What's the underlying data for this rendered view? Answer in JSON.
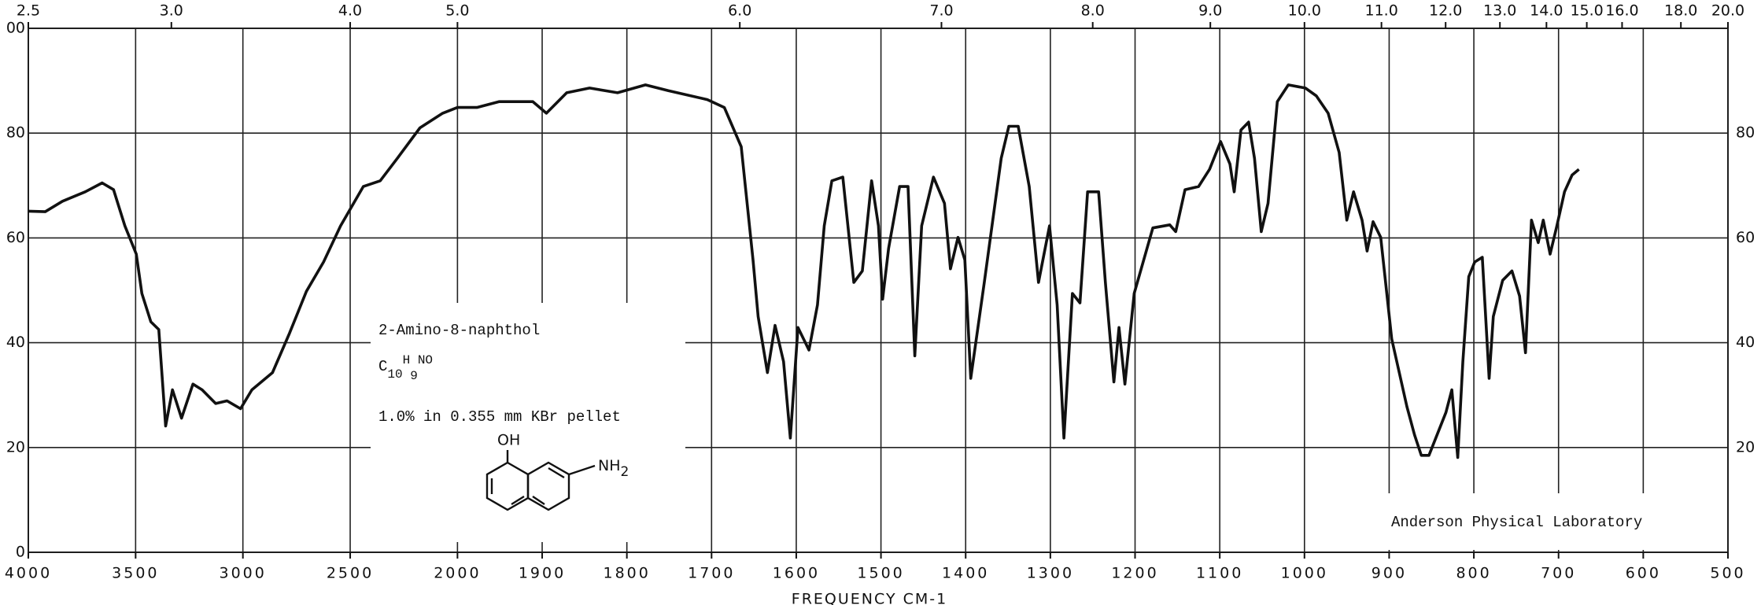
{
  "chart_data": {
    "type": "line",
    "x_label": "FREQUENCY  CM-1",
    "color": "#111111",
    "grid": true,
    "xlim": [
      4000,
      500
    ],
    "xticks": [
      4000,
      3500,
      3000,
      2500,
      2000,
      1900,
      1800,
      1700,
      1600,
      1500,
      1400,
      1300,
      1200,
      1100,
      1000,
      900,
      800,
      700,
      600,
      500
    ],
    "x2ticks": [
      2.5,
      {
        "value": 3,
        "label": "3.0"
      },
      {
        "value": 4,
        "label": "4.0"
      },
      {
        "value": 5,
        "label": "5.0"
      },
      {
        "value": 6,
        "label": "6.0"
      },
      {
        "value": 7,
        "label": "7.0"
      },
      {
        "value": 8,
        "label": "8.0"
      },
      {
        "value": 9,
        "label": "9.0"
      },
      {
        "value": 10,
        "label": "10.0"
      },
      {
        "value": 11,
        "label": "11.0"
      },
      {
        "value": 12,
        "label": "12.0"
      },
      {
        "value": 13,
        "label": "13.0"
      },
      {
        "value": 14,
        "label": "14.0"
      },
      {
        "value": 15,
        "label": "15.0"
      },
      {
        "value": 16,
        "label": "16.0"
      },
      {
        "value": 18,
        "label": "18.0"
      },
      {
        "value": 20,
        "label": "20.0"
      }
    ],
    "ylim": [
      0,
      100
    ],
    "yticks": [
      0,
      20,
      40,
      60,
      80,
      {
        "value": 100,
        "label": "00"
      }
    ],
    "x": [
      4000,
      3921,
      3841,
      3735,
      3656,
      3603,
      3550,
      3497,
      3471,
      3429,
      3392,
      3360,
      3328,
      3286,
      3233,
      3190,
      3127,
      3074,
      3011,
      2958,
      2862,
      2783,
      2704,
      2624,
      2545,
      2439,
      2360,
      2280,
      2175,
      2069,
      2000,
      1977,
      1951,
      1911,
      1895,
      1871,
      1844,
      1811,
      1778,
      1751,
      1705,
      1685,
      1665,
      1651,
      1645,
      1634,
      1625,
      1615,
      1607,
      1598,
      1585,
      1575,
      1567,
      1558,
      1545,
      1532,
      1522,
      1511,
      1503,
      1498,
      1491,
      1478,
      1468,
      1460,
      1452,
      1438,
      1425,
      1418,
      1409,
      1401,
      1394,
      1378,
      1358,
      1349,
      1338,
      1325,
      1314,
      1301,
      1292,
      1284,
      1274,
      1265,
      1256,
      1243,
      1235,
      1225,
      1219,
      1212,
      1201,
      1179,
      1159,
      1152,
      1141,
      1125,
      1112,
      1099,
      1088,
      1083,
      1075,
      1066,
      1059,
      1051,
      1043,
      1032,
      1019,
      999,
      986,
      972,
      959,
      950,
      942,
      932,
      926,
      919,
      910,
      897,
      879,
      870,
      862,
      853,
      833,
      826,
      819,
      813,
      806,
      799,
      790,
      782,
      777,
      766,
      755,
      746,
      739,
      732,
      724,
      718,
      710,
      702,
      693,
      684,
      676
    ],
    "values": [
      65.1,
      65,
      67,
      68.8,
      70.5,
      69.2,
      62.3,
      56.9,
      49.4,
      44,
      42.5,
      24.1,
      31,
      25.6,
      32.1,
      31,
      28.4,
      28.9,
      27.4,
      31,
      34.3,
      41.8,
      49.8,
      55.4,
      62.3,
      69.8,
      70.9,
      75.2,
      81,
      83.8,
      84.9,
      84.9,
      86,
      86,
      83.8,
      87.7,
      88.6,
      87.7,
      89.2,
      88.1,
      86.4,
      84.9,
      77.4,
      55.8,
      45,
      34.3,
      43.3,
      36.4,
      21.8,
      42.9,
      38.6,
      47.2,
      62.3,
      70.9,
      71.6,
      51.5,
      53.7,
      70.9,
      62.3,
      48.3,
      58,
      69.8,
      69.8,
      37.5,
      62.3,
      71.6,
      66.6,
      54.1,
      60.1,
      55.8,
      33.2,
      51.5,
      75.2,
      81.3,
      81.3,
      69.8,
      51.5,
      62.3,
      47.2,
      21.8,
      49.4,
      47.6,
      68.8,
      68.8,
      51.5,
      32.5,
      42.9,
      32.1,
      49.4,
      61.9,
      62.5,
      61.2,
      69.2,
      69.8,
      73.1,
      78.4,
      74.1,
      68.8,
      80.6,
      82.1,
      75.2,
      61.2,
      66.6,
      86,
      89.2,
      88.6,
      87.1,
      83.8,
      76.3,
      63.4,
      68.8,
      63.4,
      57.5,
      63.1,
      60.1,
      40.7,
      27.8,
      22.4,
      18.5,
      18.5,
      26.7,
      31,
      18.1,
      36.4,
      52.6,
      55.4,
      56.3,
      33.2,
      45,
      51.9,
      53.7,
      48.9,
      38.1,
      63.4,
      59.1,
      63.4,
      56.9,
      62.3,
      68.8,
      72,
      73.1
    ],
    "compound": "2-Amino-8-naphthol",
    "formula": [
      "C",
      "10",
      "H",
      "9",
      "NO"
    ],
    "sample": "1.0% in 0.355 mm  KBr pellet",
    "structure_oh": "OH",
    "structure_nh2": [
      "NH",
      "2"
    ],
    "lab": "Anderson Physical Laboratory"
  }
}
